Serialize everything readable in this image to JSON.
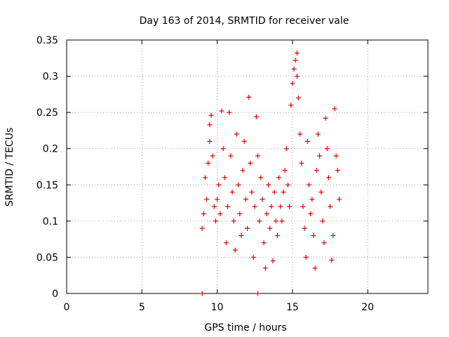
{
  "chart_data": {
    "type": "scatter",
    "title": "Day 163 of 2014, SRMTID for receiver vale",
    "xlabel": "GPS time / hours",
    "ylabel": "SRMTID / TECUs",
    "xlim": [
      0,
      24
    ],
    "ylim": [
      0,
      0.35
    ],
    "xticks": [
      0,
      5,
      10,
      15,
      20
    ],
    "yticks": [
      0,
      0.05,
      0.1,
      0.15,
      0.2,
      0.25,
      0.3,
      0.35
    ],
    "xtick_labels": [
      "0",
      "5",
      "10",
      "15",
      "20"
    ],
    "ytick_labels": [
      "0",
      "0.05",
      "0.1",
      "0.15",
      "0.2",
      "0.25",
      "0.3",
      "0.35"
    ],
    "grid": true,
    "marker": "+",
    "color": "#e00000",
    "series": [
      {
        "name": "SRMTID",
        "x_range": [
          9.0,
          18.1
        ],
        "note": "dense cloud of plus markers; values mostly 0.04–0.25 TECU, peak ~0.33 near 15.3 h",
        "points": [
          [
            9.0,
            0.0
          ],
          [
            12.7,
            0.0
          ],
          [
            9.0,
            0.09
          ],
          [
            9.1,
            0.11
          ],
          [
            9.2,
            0.16
          ],
          [
            9.3,
            0.13
          ],
          [
            9.4,
            0.18
          ],
          [
            9.5,
            0.21
          ],
          [
            9.5,
            0.233
          ],
          [
            9.6,
            0.246
          ],
          [
            9.7,
            0.19
          ],
          [
            9.8,
            0.12
          ],
          [
            9.9,
            0.1
          ],
          [
            10.0,
            0.13
          ],
          [
            10.1,
            0.15
          ],
          [
            10.2,
            0.11
          ],
          [
            10.3,
            0.252
          ],
          [
            10.4,
            0.2
          ],
          [
            10.5,
            0.16
          ],
          [
            10.6,
            0.07
          ],
          [
            10.7,
            0.12
          ],
          [
            10.8,
            0.25
          ],
          [
            10.9,
            0.19
          ],
          [
            11.0,
            0.14
          ],
          [
            11.1,
            0.1
          ],
          [
            11.2,
            0.06
          ],
          [
            11.3,
            0.22
          ],
          [
            11.4,
            0.15
          ],
          [
            11.5,
            0.11
          ],
          [
            11.6,
            0.08
          ],
          [
            11.7,
            0.17
          ],
          [
            11.8,
            0.21
          ],
          [
            11.9,
            0.13
          ],
          [
            12.0,
            0.09
          ],
          [
            12.1,
            0.271
          ],
          [
            12.2,
            0.18
          ],
          [
            12.3,
            0.14
          ],
          [
            12.4,
            0.05
          ],
          [
            12.5,
            0.12
          ],
          [
            12.6,
            0.244
          ],
          [
            12.7,
            0.19
          ],
          [
            12.8,
            0.1
          ],
          [
            12.9,
            0.16
          ],
          [
            13.0,
            0.13
          ],
          [
            13.1,
            0.07
          ],
          [
            13.2,
            0.035
          ],
          [
            13.3,
            0.11
          ],
          [
            13.4,
            0.15
          ],
          [
            13.5,
            0.09
          ],
          [
            13.6,
            0.12
          ],
          [
            13.7,
            0.045
          ],
          [
            13.8,
            0.14
          ],
          [
            13.9,
            0.1
          ],
          [
            14.0,
            0.08
          ],
          [
            14.1,
            0.16
          ],
          [
            14.2,
            0.12
          ],
          [
            14.3,
            0.1
          ],
          [
            14.4,
            0.14
          ],
          [
            14.5,
            0.17
          ],
          [
            14.6,
            0.2
          ],
          [
            14.7,
            0.15
          ],
          [
            14.8,
            0.12
          ],
          [
            14.9,
            0.26
          ],
          [
            15.0,
            0.29
          ],
          [
            15.1,
            0.31
          ],
          [
            15.2,
            0.322
          ],
          [
            15.3,
            0.332
          ],
          [
            15.3,
            0.3
          ],
          [
            15.4,
            0.27
          ],
          [
            15.5,
            0.22
          ],
          [
            15.6,
            0.18
          ],
          [
            15.7,
            0.12
          ],
          [
            15.8,
            0.09
          ],
          [
            15.9,
            0.05
          ],
          [
            16.0,
            0.21
          ],
          [
            16.1,
            0.15
          ],
          [
            16.2,
            0.11
          ],
          [
            16.3,
            0.13
          ],
          [
            16.4,
            0.08
          ],
          [
            16.5,
            0.035
          ],
          [
            16.6,
            0.17
          ],
          [
            16.7,
            0.22
          ],
          [
            16.8,
            0.19
          ],
          [
            16.9,
            0.14
          ],
          [
            17.0,
            0.1
          ],
          [
            17.1,
            0.07
          ],
          [
            17.2,
            0.242
          ],
          [
            17.3,
            0.2
          ],
          [
            17.4,
            0.16
          ],
          [
            17.5,
            0.12
          ],
          [
            17.6,
            0.046
          ],
          [
            17.7,
            0.08
          ],
          [
            17.8,
            0.255
          ],
          [
            17.9,
            0.19
          ],
          [
            18.0,
            0.17
          ],
          [
            18.1,
            0.13
          ]
        ]
      }
    ]
  }
}
